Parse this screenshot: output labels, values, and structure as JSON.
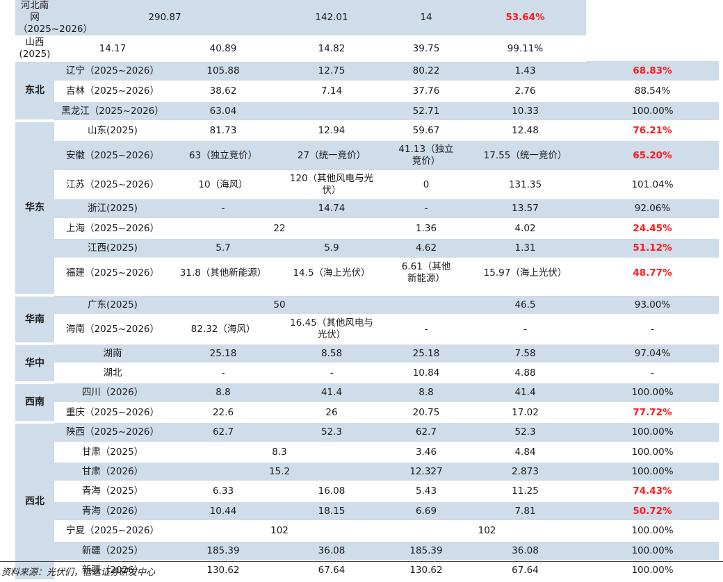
{
  "rows": [
    {
      "region": null,
      "province": "河北南网\n（2025~2026）",
      "cells": [
        [
          "290.87",
          2
        ],
        [
          "142.01",
          1
        ],
        [
          "14",
          1
        ]
      ],
      "ratio": "53.64%",
      "red": true,
      "shade": true,
      "h": 40
    },
    {
      "region": null,
      "province": "山西(2025)",
      "cells": [
        [
          "14.17",
          1
        ],
        [
          "40.89",
          1
        ],
        [
          "14.82",
          1
        ],
        [
          "39.75",
          1
        ]
      ],
      "ratio": "99.11%",
      "red": false,
      "shade": false,
      "h": 28
    },
    {
      "region": {
        "label": "东北",
        "rowspan": 3
      },
      "province": "辽宁（2025~2026）",
      "cells": [
        [
          "105.88",
          1
        ],
        [
          "12.75",
          1
        ],
        [
          "80.22",
          1
        ],
        [
          "1.43",
          1
        ]
      ],
      "ratio": "68.83%",
      "red": true,
      "shade": true,
      "h": 29
    },
    {
      "region": null,
      "province": "吉林（2025~2026）",
      "cells": [
        [
          "38.62",
          1
        ],
        [
          "7.14",
          1
        ],
        [
          "37.76",
          1
        ],
        [
          "2.76",
          1
        ]
      ],
      "ratio": "88.54%",
      "red": false,
      "shade": false,
      "h": 29
    },
    {
      "region": null,
      "province": "黑龙江（2025~2026）",
      "cells": [
        [
          "63.04",
          1
        ],
        [
          "",
          1
        ],
        [
          "52.71",
          1
        ],
        [
          "10.33",
          1
        ]
      ],
      "ratio": "100.00%",
      "red": false,
      "shade": true,
      "h": 28
    },
    {
      "region": {
        "label": "华东",
        "rowspan": 8
      },
      "province": "山东(2025)",
      "cells": [
        [
          "81.73",
          1
        ],
        [
          "12.94",
          1
        ],
        [
          "59.67",
          1
        ],
        [
          "12.48",
          1
        ]
      ],
      "ratio": "76.21%",
      "red": true,
      "shade": false,
      "h": 28
    },
    {
      "region": null,
      "province": "安徽（2025~2026）",
      "cells": [
        [
          "63（独立竞价）",
          1
        ],
        [
          "27（统一竞价）",
          1
        ],
        [
          "41.13（独立\n竞价）",
          1
        ],
        [
          "17.55（统一竞价）",
          1
        ]
      ],
      "ratio": "65.20%",
      "red": true,
      "shade": true,
      "h": 44
    },
    {
      "region": null,
      "province": "江苏（2025~2026）",
      "cells": [
        [
          "10（海风）",
          1
        ],
        [
          "120（其他风电与光\n伏）",
          1
        ],
        [
          "0",
          1
        ],
        [
          "131.35",
          1
        ]
      ],
      "ratio": "101.04%",
      "red": false,
      "shade": false,
      "h": 40
    },
    {
      "region": null,
      "province": "浙江(2025)",
      "cells": [
        [
          "-",
          1
        ],
        [
          "14.74",
          1
        ],
        [
          "-",
          1
        ],
        [
          "13.57",
          1
        ]
      ],
      "ratio": "92.06%",
      "red": false,
      "shade": true,
      "h": 29
    },
    {
      "region": null,
      "province": "上海（2025~2026）",
      "cells": [
        [
          "22",
          2
        ],
        [
          "1.36",
          1
        ],
        [
          "4.02",
          1
        ]
      ],
      "ratio": "24.45%",
      "red": true,
      "shade": false,
      "h": 28
    },
    {
      "region": null,
      "province": "江西(2025)",
      "cells": [
        [
          "5.7",
          1
        ],
        [
          "5.9",
          1
        ],
        [
          "4.62",
          1
        ],
        [
          "1.31",
          1
        ]
      ],
      "ratio": "51.12%",
      "red": true,
      "shade": true,
      "h": 29
    },
    {
      "region": null,
      "province": "福建（2025~2026）",
      "cells": [
        [
          "31.8（其他新能源）",
          1
        ],
        [
          "14.5（海上光伏）",
          1
        ],
        [
          "6.61（其他\n新能源）",
          1
        ],
        [
          "15.97（海上光伏）",
          1
        ]
      ],
      "ratio": "48.77%",
      "red": true,
      "shade": false,
      "h": 42
    },
    {
      "region": null,
      "province": "",
      "cells": [
        [
          "",
          1
        ],
        [
          "",
          1
        ],
        [
          "",
          1
        ],
        [
          "",
          1
        ]
      ],
      "ratio": "",
      "red": false,
      "shade": false,
      "h": 11
    },
    {
      "region": {
        "label": "华南",
        "rowspan": 2
      },
      "province": "广东(2025)",
      "cells": [
        [
          "50",
          2
        ],
        [
          "",
          1
        ],
        [
          "46.5",
          1
        ]
      ],
      "ratio": "93.00%",
      "red": false,
      "shade": true,
      "h": 28
    },
    {
      "region": null,
      "province": "海南（2025~2026）",
      "cells": [
        [
          "82.32（海风）",
          1
        ],
        [
          "16.45（其他风电与\n光伏）",
          1
        ],
        [
          "-",
          1
        ],
        [
          "-",
          1
        ]
      ],
      "ratio": "-",
      "red": false,
      "shade": false,
      "h": 42
    },
    {
      "region": {
        "label": "华中",
        "rowspan": 2
      },
      "province": "湖南",
      "cells": [
        [
          "25.18",
          1
        ],
        [
          "8.58",
          1
        ],
        [
          "25.18",
          1
        ],
        [
          "7.58",
          1
        ]
      ],
      "ratio": "97.04%",
      "red": false,
      "shade": true,
      "h": 28
    },
    {
      "region": null,
      "province": "湖北",
      "cells": [
        [
          "-",
          1
        ],
        [
          "-",
          1
        ],
        [
          "10.84",
          1
        ],
        [
          "4.88",
          1
        ]
      ],
      "ratio": "-",
      "red": false,
      "shade": false,
      "h": 28
    },
    {
      "region": {
        "label": "西南",
        "rowspan": 2
      },
      "province": "四川（2026）",
      "cells": [
        [
          "8.8",
          1
        ],
        [
          "41.4",
          1
        ],
        [
          "8.8",
          1
        ],
        [
          "41.4",
          1
        ]
      ],
      "ratio": "100.00%",
      "red": false,
      "shade": true,
      "h": 29
    },
    {
      "region": null,
      "province": "重庆（2025~2026）",
      "cells": [
        [
          "22.6",
          1
        ],
        [
          "26",
          1
        ],
        [
          "20.75",
          1
        ],
        [
          "17.02",
          1
        ]
      ],
      "ratio": "77.72%",
      "red": true,
      "shade": false,
      "h": 28
    },
    {
      "region": {
        "label": "西北",
        "rowspan": 8
      },
      "province": "陕西（2025~2026）",
      "cells": [
        [
          "62.7",
          1
        ],
        [
          "52.3",
          1
        ],
        [
          "62.7",
          1
        ],
        [
          "52.3",
          1
        ]
      ],
      "ratio": "100.00%",
      "red": false,
      "shade": true,
      "h": 29
    },
    {
      "region": null,
      "province": "甘肃（2025）",
      "cells": [
        [
          "8.3",
          2
        ],
        [
          "3.46",
          1
        ],
        [
          "4.84",
          1
        ]
      ],
      "ratio": "100.00%",
      "red": false,
      "shade": false,
      "h": 28
    },
    {
      "region": null,
      "province": "甘肃（2026）",
      "cells": [
        [
          "15.2",
          2
        ],
        [
          "12.327",
          1
        ],
        [
          "2.873",
          1
        ]
      ],
      "ratio": "100.00%",
      "red": false,
      "shade": true,
      "h": 28
    },
    {
      "region": null,
      "province": "青海（2025）",
      "cells": [
        [
          "6.33",
          1
        ],
        [
          "16.08",
          1
        ],
        [
          "5.43",
          1
        ],
        [
          "11.25",
          1
        ]
      ],
      "ratio": "74.43%",
      "red": true,
      "shade": false,
      "h": 29
    },
    {
      "region": null,
      "province": "青海（2026）",
      "cells": [
        [
          "10.44",
          1
        ],
        [
          "18.15",
          1
        ],
        [
          "6.69",
          1
        ],
        [
          "7.81",
          1
        ]
      ],
      "ratio": "50.72%",
      "red": true,
      "shade": true,
      "h": 28
    },
    {
      "region": null,
      "province": "宁夏（2025~2026）",
      "cells": [
        [
          "102",
          2
        ],
        [
          "102",
          2
        ]
      ],
      "ratio": "100.00%",
      "red": false,
      "shade": false,
      "h": 29
    },
    {
      "region": null,
      "province": "新疆（2025）",
      "cells": [
        [
          "185.39",
          1
        ],
        [
          "36.08",
          1
        ],
        [
          "185.39",
          1
        ],
        [
          "36.08",
          1
        ]
      ],
      "ratio": "100.00%",
      "red": false,
      "shade": true,
      "h": 28
    },
    {
      "region": null,
      "province": "新疆（2026）",
      "cells": [
        [
          "130.62",
          1
        ],
        [
          "67.64",
          1
        ],
        [
          "130.62",
          1
        ],
        [
          "67.64",
          1
        ]
      ],
      "ratio": "100.00%",
      "red": false,
      "shade": false,
      "h": 29
    }
  ],
  "source": "资料来源：光伏们，信达证券研发中心",
  "colors": {
    "shade": "#cfdce9",
    "highlight": "#ff1a1a"
  }
}
